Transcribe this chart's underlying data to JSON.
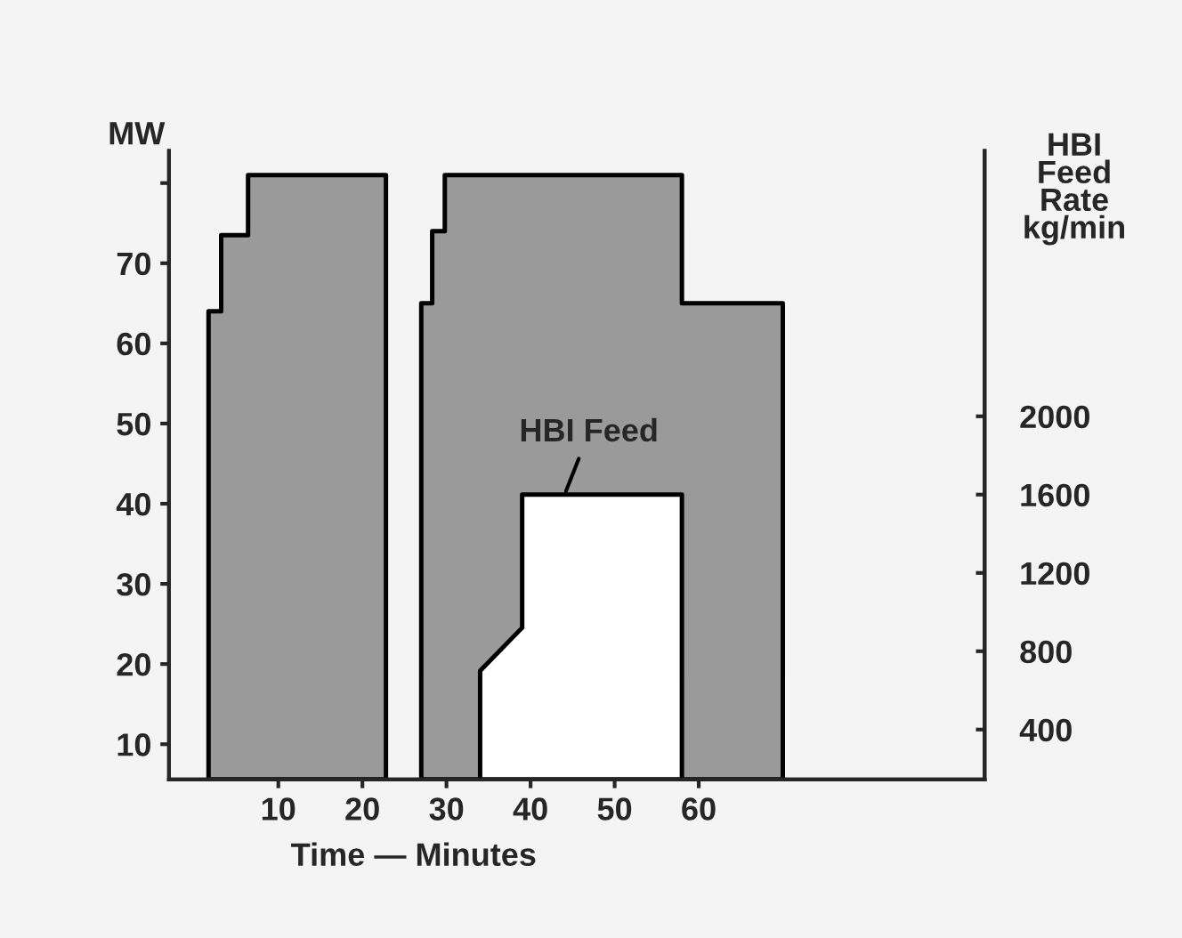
{
  "chart_data": {
    "type": "area",
    "xlabel": "Time — Minutes",
    "ylabel": "MW",
    "y2label": "HBI\nFeed\nRate\nkg/min",
    "series": [
      {
        "color": "#9a9a9a",
        "x": [
          1.7,
          3.2,
          3.2,
          6.4,
          6.4,
          22.8,
          25,
          27,
          28.3,
          28.3,
          29.8,
          29.8,
          58,
          58,
          70
        ],
        "values": [
          64,
          64,
          73.5,
          73.5,
          81,
          81,
          null,
          65,
          65,
          74,
          74,
          81,
          81,
          65,
          65
        ]
      },
      {
        "axis": "y2",
        "color": "#ffffff",
        "x": [
          34,
          39,
          39,
          58
        ],
        "values": [
          700,
          920,
          1600,
          1600
        ]
      }
    ],
    "xlim": [
      -3,
      94
    ],
    "xticks": [
      10,
      20,
      30,
      40,
      50,
      60
    ],
    "ylim": [
      5.6,
      84
    ],
    "yticks": [
      10,
      20,
      30,
      40,
      50,
      60,
      70,
      {
        "value": 80,
        "label": null
      }
    ],
    "y2lim": [
      145,
      3355
    ],
    "y2ticks": [
      400,
      800,
      1200,
      1600,
      2000
    ],
    "annotations": [
      {
        "text": "HBI Feed",
        "x": 44,
        "y": 41
      }
    ],
    "grid": false,
    "legend": false
  }
}
